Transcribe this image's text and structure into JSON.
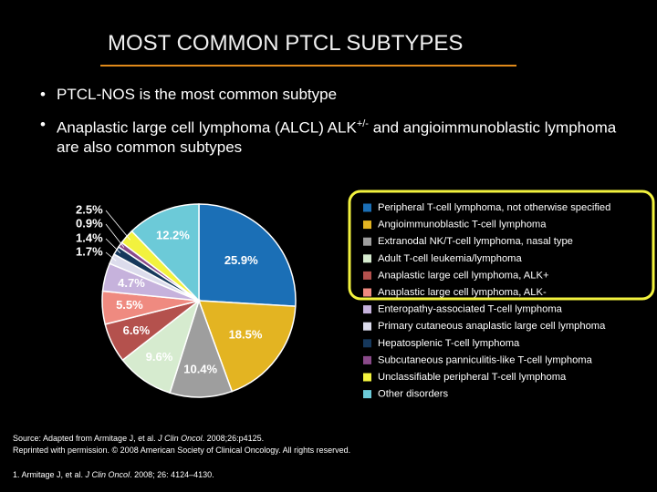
{
  "header": {
    "title": "MOST COMMON PTCL SUBTYPES"
  },
  "bullets": [
    {
      "parts": [
        "PTCL-NOS is the most common subtype"
      ]
    },
    {
      "parts": [
        "Anaplastic large cell lymphoma (ALCL) ALK",
        "+/-",
        " and angioimmunoblastic lymphoma are also common subtypes"
      ]
    }
  ],
  "chart_data": {
    "type": "pie",
    "categories": [
      "Peripheral T-cell lymphoma, not otherwise specified",
      "Angioimmunoblastic T-cell lymphoma",
      "Extranodal NK/T-cell lymphoma, nasal type",
      "Adult T-cell leukemia/lymphoma",
      "Anaplastic large cell lymphoma, ALK+",
      "Anaplastic large cell lymphoma, ALK-",
      "Enteropathy-associated T-cell lymphoma",
      "Primary cutaneous anaplastic large cell lymphoma",
      "Hepatosplenic T-cell lymphoma",
      "Subcutaneous panniculitis-like T-cell lymphoma",
      "Unclassifiable peripheral T-cell lymphoma",
      "Other disorders"
    ],
    "values": [
      25.9,
      18.5,
      10.4,
      9.6,
      6.6,
      5.5,
      4.7,
      1.7,
      1.4,
      0.9,
      2.5,
      12.2
    ],
    "value_labels": [
      "25.9%",
      "18.5%",
      "10.4%",
      "9.6%",
      "6.6%",
      "5.5%",
      "4.7%",
      "1.7%",
      "1.4%",
      "0.9%",
      "2.5%",
      "12.2%"
    ],
    "colors": [
      "#1b6fb6",
      "#e3b422",
      "#9e9e9e",
      "#d6ebcf",
      "#b4514d",
      "#ef8a80",
      "#c6b2dc",
      "#dcdcec",
      "#16385c",
      "#8a4a8a",
      "#f2f23e",
      "#6ccad8"
    ]
  },
  "source": {
    "line1": [
      "Source: Adapted from Armitage J, et al. ",
      "J Clin Oncol",
      ". 2008;26:p4125."
    ],
    "line2": "Reprinted with permission. © 2008 American Society of Clinical Oncology. All rights reserved.",
    "reference": [
      "1. Armitage J, et al. ",
      "J Clin Oncol",
      ". 2008; 26: 4124–4130."
    ]
  }
}
